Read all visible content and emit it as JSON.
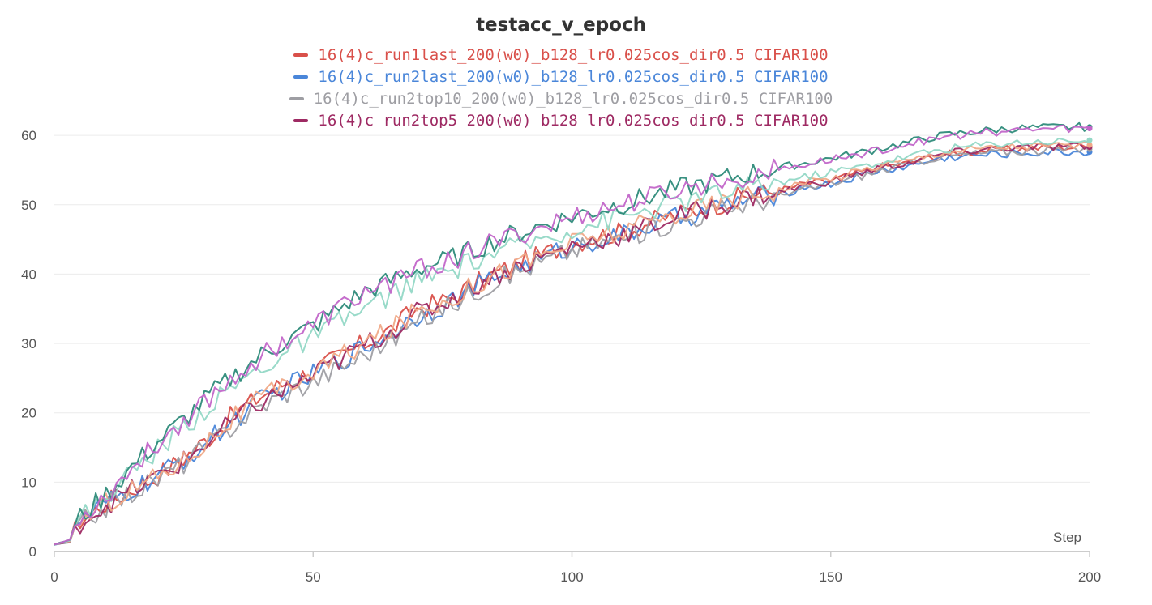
{
  "chart_data": {
    "type": "line",
    "title": "testacc_v_epoch",
    "xlabel": "Step",
    "ylabel": "",
    "xlim": [
      0,
      200
    ],
    "ylim": [
      0,
      62
    ],
    "x_ticks": [
      "0",
      "50",
      "100",
      "150",
      "200"
    ],
    "y_ticks": [
      "0",
      "10",
      "20",
      "30",
      "40",
      "50",
      "60"
    ],
    "grid": "horizontal",
    "legend": [
      {
        "name": "16(4)c_run1last_200(w0)_b128_lr0.025cos_dir0.5 CIFAR100",
        "color": "#d9504a"
      },
      {
        "name": "16(4)c_run2last_200(w0)_b128_lr0.025cos_dir0.5 CIFAR100",
        "color": "#4a86d9"
      },
      {
        "name": "16(4)c_run2top10_200(w0)_b128_lr0.025cos_dir0.5 CIFAR100",
        "color": "#9e9ea3"
      },
      {
        "name": "16(4)c_run2top5_200(w0)_b128_lr0.025cos_dir0.5 CIFAR100",
        "color": "#9e2a63"
      }
    ],
    "series": [
      {
        "name": "16(4)c_run1last_200(w0)_b128_lr0.025cos_dir0.5 CIFAR100",
        "color": "#d9504a",
        "x": [
          0,
          3,
          5,
          10,
          15,
          20,
          25,
          30,
          35,
          40,
          45,
          50,
          55,
          60,
          65,
          70,
          75,
          80,
          85,
          90,
          95,
          100,
          105,
          110,
          115,
          120,
          125,
          130,
          135,
          140,
          145,
          150,
          155,
          160,
          165,
          170,
          175,
          180,
          185,
          190,
          195,
          200
        ],
        "values": [
          1,
          1.5,
          4.5,
          7,
          9,
          11,
          13.5,
          16.5,
          20,
          22.5,
          24.5,
          26,
          28,
          30,
          32,
          35,
          36,
          38,
          40,
          41.5,
          43,
          44.5,
          45.5,
          46,
          47.5,
          48.5,
          49.5,
          50.5,
          51.5,
          52,
          53,
          53.5,
          54.5,
          55.5,
          56,
          57,
          57.5,
          57.8,
          58,
          58.2,
          58.3,
          58.4
        ]
      },
      {
        "name": "16(4)c_run2last_200(w0)_b128_lr0.025cos_dir0.5 CIFAR100",
        "color": "#4a86d9",
        "x": [
          0,
          3,
          5,
          10,
          15,
          20,
          25,
          30,
          35,
          40,
          45,
          50,
          55,
          60,
          65,
          70,
          75,
          80,
          85,
          90,
          95,
          100,
          105,
          110,
          115,
          120,
          125,
          130,
          135,
          140,
          145,
          150,
          155,
          160,
          165,
          170,
          175,
          180,
          185,
          190,
          195,
          200
        ],
        "values": [
          1,
          1.4,
          4.3,
          6.8,
          8.8,
          10.8,
          13.2,
          16,
          19.2,
          21.8,
          23.8,
          25.5,
          27.5,
          29.5,
          31.5,
          34,
          35.5,
          37.5,
          39.5,
          41,
          42.5,
          44,
          45,
          45.5,
          47,
          48,
          49,
          50,
          51,
          51.5,
          52.5,
          53,
          54,
          55,
          55.5,
          56.5,
          57,
          57.2,
          57.4,
          57.5,
          57.6,
          57.6
        ]
      },
      {
        "name": "16(4)c_run2top10_200(w0)_b128_lr0.025cos_dir0.5 CIFAR100",
        "color": "#9e9ea3",
        "x": [
          0,
          3,
          5,
          10,
          15,
          20,
          25,
          30,
          35,
          40,
          45,
          50,
          55,
          60,
          65,
          70,
          75,
          80,
          85,
          90,
          95,
          100,
          105,
          110,
          115,
          120,
          125,
          130,
          135,
          140,
          145,
          150,
          155,
          160,
          165,
          170,
          175,
          180,
          185,
          190,
          195,
          200
        ],
        "values": [
          1,
          1.3,
          4,
          6.5,
          8.5,
          10.5,
          12.8,
          15.5,
          18.5,
          21,
          23,
          24.5,
          26.5,
          28.5,
          30.5,
          33,
          35,
          37,
          39,
          40.5,
          42,
          43.5,
          44.5,
          45.2,
          46.5,
          47.5,
          48.5,
          49.5,
          50.5,
          51.2,
          52.2,
          53,
          54,
          55,
          55.8,
          56.8,
          57.2,
          57.5,
          57.7,
          57.8,
          57.9,
          58
        ]
      },
      {
        "name": "16(4)c_run2top5_200(w0)_b128_lr0.025cos_dir0.5 CIFAR100",
        "color": "#9e2a63",
        "x": [
          0,
          3,
          5,
          10,
          15,
          20,
          25,
          30,
          35,
          40,
          45,
          50,
          55,
          60,
          65,
          70,
          75,
          80,
          85,
          90,
          95,
          100,
          105,
          110,
          115,
          120,
          125,
          130,
          135,
          140,
          145,
          150,
          155,
          160,
          165,
          170,
          175,
          180,
          185,
          190,
          195,
          200
        ],
        "values": [
          1,
          1.4,
          4.2,
          6.8,
          8.8,
          10.8,
          13,
          16,
          19,
          21.5,
          23.5,
          25.3,
          27.5,
          29.8,
          31.8,
          34.3,
          35.8,
          37.8,
          39.8,
          41.2,
          42.6,
          44,
          45,
          45.6,
          47,
          48.2,
          49.2,
          50.2,
          51.2,
          51.8,
          52.8,
          53.4,
          54.4,
          55.4,
          56,
          57,
          57.6,
          58,
          58.2,
          58.3,
          58.4,
          58.3
        ]
      },
      {
        "name": "",
        "color": "#f0a987",
        "x": [
          0,
          3,
          5,
          10,
          15,
          20,
          25,
          30,
          35,
          40,
          45,
          50,
          55,
          60,
          65,
          70,
          75,
          80,
          85,
          90,
          95,
          100,
          105,
          110,
          115,
          120,
          125,
          130,
          135,
          140,
          145,
          150,
          155,
          160,
          165,
          170,
          175,
          180,
          185,
          190,
          195,
          200
        ],
        "values": [
          1,
          1.5,
          4.4,
          7,
          9,
          11,
          13.2,
          16.2,
          19.5,
          22,
          24,
          25.8,
          28,
          30,
          32,
          34.8,
          36,
          38,
          40,
          41.5,
          43,
          44.5,
          45.5,
          46,
          47.5,
          48.6,
          49.6,
          50.6,
          51.6,
          52.2,
          53.2,
          53.8,
          54.8,
          55.8,
          56.4,
          57.4,
          57.9,
          58.2,
          58.4,
          58.5,
          58.6,
          58.6
        ]
      },
      {
        "name": "",
        "color": "#93d8c6",
        "x": [
          0,
          3,
          5,
          10,
          15,
          20,
          25,
          30,
          35,
          40,
          45,
          50,
          55,
          60,
          65,
          70,
          75,
          80,
          85,
          90,
          95,
          100,
          105,
          110,
          115,
          120,
          125,
          130,
          135,
          140,
          145,
          150,
          155,
          160,
          165,
          170,
          175,
          180,
          185,
          190,
          195,
          200
        ],
        "values": [
          1,
          1.6,
          4.8,
          8,
          11.5,
          14.8,
          18,
          21,
          24,
          26.5,
          28.8,
          30.8,
          33,
          35,
          37,
          39,
          40,
          41.5,
          43,
          44,
          45.3,
          46.5,
          47.5,
          48.3,
          49.3,
          50.2,
          51,
          51.8,
          52.6,
          53.3,
          54,
          54.7,
          55.4,
          56.2,
          57,
          57.8,
          58.3,
          58.7,
          59,
          59.1,
          59.2,
          59.3
        ]
      },
      {
        "name": "",
        "color": "#2e8b7a",
        "x": [
          0,
          3,
          5,
          10,
          15,
          20,
          25,
          30,
          35,
          40,
          45,
          50,
          55,
          60,
          65,
          70,
          75,
          80,
          85,
          90,
          95,
          100,
          105,
          110,
          115,
          120,
          125,
          130,
          135,
          140,
          145,
          150,
          155,
          160,
          165,
          170,
          175,
          180,
          185,
          190,
          195,
          200
        ],
        "values": [
          1,
          1.7,
          5,
          8.2,
          12.2,
          15.8,
          19,
          22.5,
          25.5,
          28.3,
          30.5,
          32.5,
          35,
          37.5,
          39,
          40.8,
          41.8,
          43.2,
          44.8,
          46,
          47.2,
          48.3,
          49.3,
          50.2,
          51.2,
          52.2,
          53,
          53.8,
          54.6,
          55.3,
          56,
          56.7,
          57.4,
          58.2,
          59,
          59.8,
          60.3,
          60.7,
          61,
          61.1,
          61.2,
          61.2
        ]
      },
      {
        "name": "",
        "color": "#c266c9",
        "x": [
          0,
          3,
          5,
          10,
          15,
          20,
          25,
          30,
          35,
          40,
          45,
          50,
          55,
          60,
          65,
          70,
          75,
          80,
          85,
          90,
          95,
          100,
          105,
          110,
          115,
          120,
          125,
          130,
          135,
          140,
          145,
          150,
          155,
          160,
          165,
          170,
          175,
          180,
          185,
          190,
          195,
          200
        ],
        "values": [
          1,
          1.7,
          5,
          8,
          12,
          15.6,
          19,
          22.2,
          25.3,
          28.3,
          30.5,
          32.5,
          35,
          37.3,
          38.8,
          40.5,
          41.5,
          43,
          44.5,
          45.7,
          47,
          48.1,
          49.1,
          50,
          51,
          52,
          52.8,
          53.6,
          54.4,
          55.1,
          55.8,
          56.5,
          57.2,
          58,
          58.8,
          59.5,
          60,
          60.4,
          60.7,
          60.9,
          61,
          61
        ]
      }
    ]
  }
}
